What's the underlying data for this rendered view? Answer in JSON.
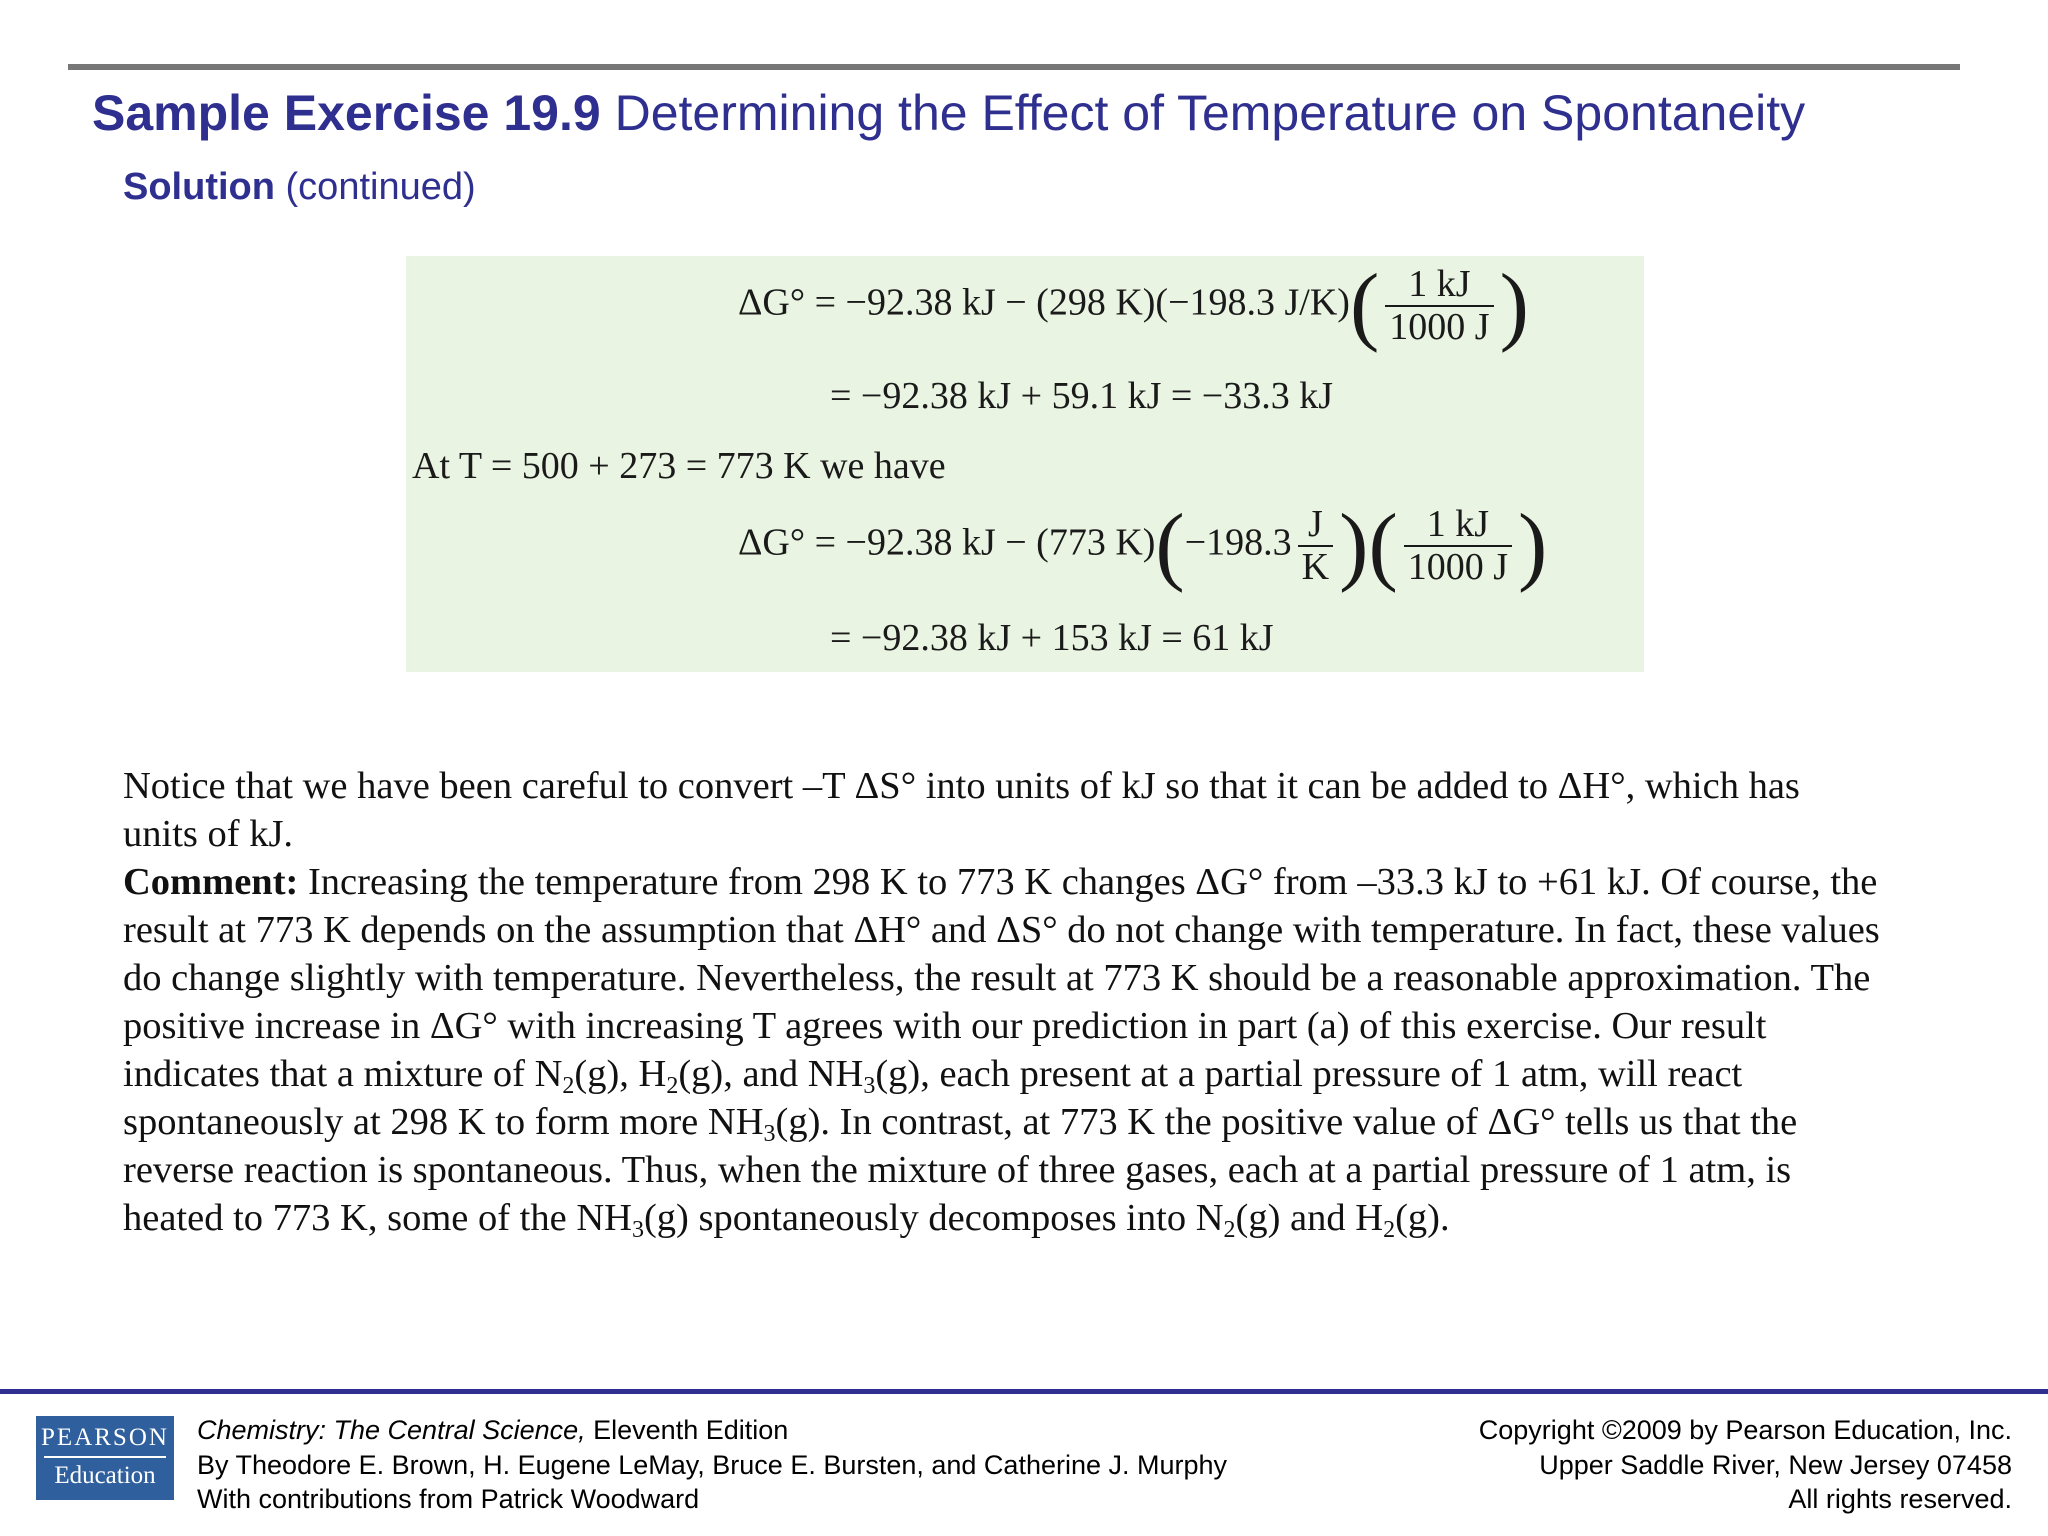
{
  "header": {
    "title_bold": "Sample Exercise 19.9",
    "title_rest": "Determining the Effect of Temperature on Spontaneity",
    "subtitle_bold": "Solution",
    "subtitle_rest": "(continued)"
  },
  "equations": {
    "l1_lhs": "ΔG° = ",
    "l1_rhs": "−92.38 kJ − (298 K)(−198.3 J/K)",
    "frac_num": "1 kJ",
    "frac_den": "1000 J",
    "l2": "= −92.38 kJ + 59.1 kJ = −33.3 kJ",
    "l3": "At T = 500 + 273 = 773 K we have",
    "l4_lhs": "ΔG° = ",
    "l4_rhs": "−92.38 kJ − (773 K)",
    "l4_value": "−198.3",
    "jk_num": "J",
    "jk_den": "K",
    "l5": "= −92.38 kJ + 153 kJ = 61 kJ"
  },
  "body": {
    "p1": "Notice that we have been careful to convert –T ΔS° into units of kJ so that it can be added to ΔH°, which has units of kJ.",
    "comment_label": "Comment:",
    "c1": " Increasing the temperature from 298 K to 773 K changes ΔG° from –33.3 kJ to +61 kJ. Of course, the result at 773 K depends on the assumption that ΔH° and ΔS° do not change with temperature. In fact, these values do change slightly with temperature. Nevertheless, the result at 773 K should be a reasonable approximation. The positive increase in ΔG° with increasing T agrees with our prediction in part (a) of this exercise. Our result indicates that a mixture of N",
    "c2": "(g), H",
    "c3": "(g), and NH",
    "c4": "(g), each present at a partial pressure of 1 atm, will react spontaneously at 298 K to form more NH",
    "c5": "(g). In contrast, at 773 K the positive value of ΔG° tells us that the reverse reaction is spontaneous. Thus, when the mixture of three gases, each at a partial pressure of 1 atm, is heated to 773 K, some of the NH",
    "c6": "(g) spontaneously decomposes into N",
    "c7": "(g) and H",
    "c8": "(g).",
    "sub2": "2",
    "sub3": "3"
  },
  "footer": {
    "logo_top": "PEARSON",
    "logo_bottom": "Education",
    "book_title": "Chemistry: The Central Science,",
    "edition": " Eleventh Edition",
    "authors": "By Theodore E. Brown, H. Eugene LeMay, Bruce E. Bursten, and Catherine J. Murphy",
    "contrib": "With contributions from Patrick Woodward",
    "copyright": "Copyright ©2009 by Pearson Education, Inc.",
    "address": "Upper Saddle River, New Jersey 07458",
    "rights": "All rights reserved."
  }
}
